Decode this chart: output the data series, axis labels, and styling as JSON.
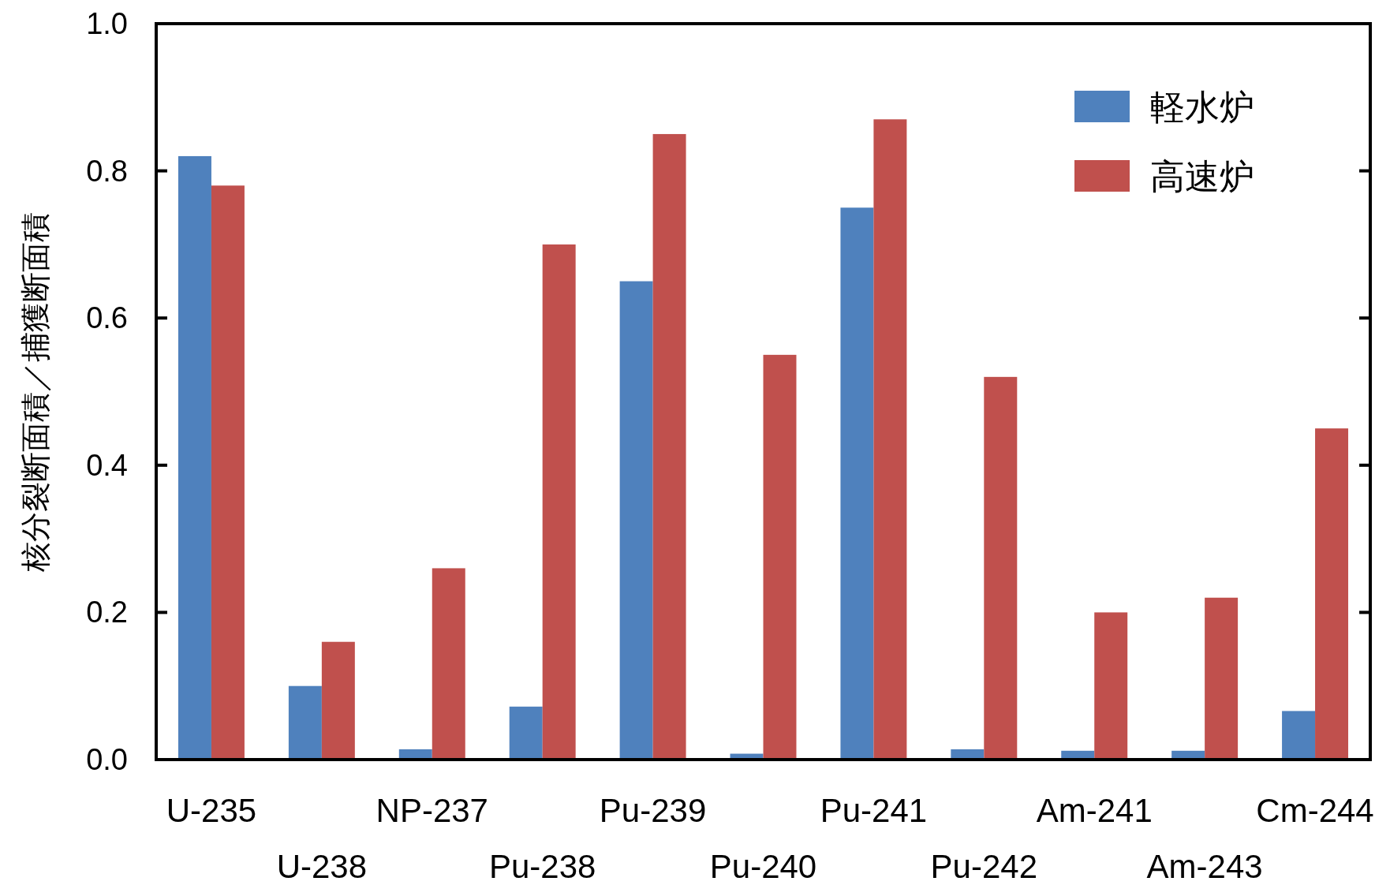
{
  "chart_data": {
    "type": "bar",
    "ylabel": "核分裂断面積／捕獲断面積",
    "categories": [
      "U-235",
      "U-238",
      "NP-237",
      "Pu-238",
      "Pu-239",
      "Pu-240",
      "Pu-241",
      "Pu-242",
      "Am-241",
      "Am-243",
      "Cm-244"
    ],
    "series": [
      {
        "name": "軽水炉",
        "color": "#4f81bd",
        "values": [
          0.82,
          0.1,
          0.014,
          0.072,
          0.65,
          0.008,
          0.75,
          0.014,
          0.012,
          0.012,
          0.066
        ]
      },
      {
        "name": "高速炉",
        "color": "#c0504d",
        "values": [
          0.78,
          0.16,
          0.26,
          0.7,
          0.85,
          0.55,
          0.87,
          0.52,
          0.2,
          0.22,
          0.45
        ]
      }
    ],
    "ylim": [
      0,
      1.0
    ],
    "yticks": [
      {
        "value": 0,
        "label": "0.0"
      },
      0.2,
      0.4,
      0.6,
      0.8,
      {
        "value": 1,
        "label": "1.0"
      }
    ],
    "legend": "top right",
    "grid": false
  }
}
